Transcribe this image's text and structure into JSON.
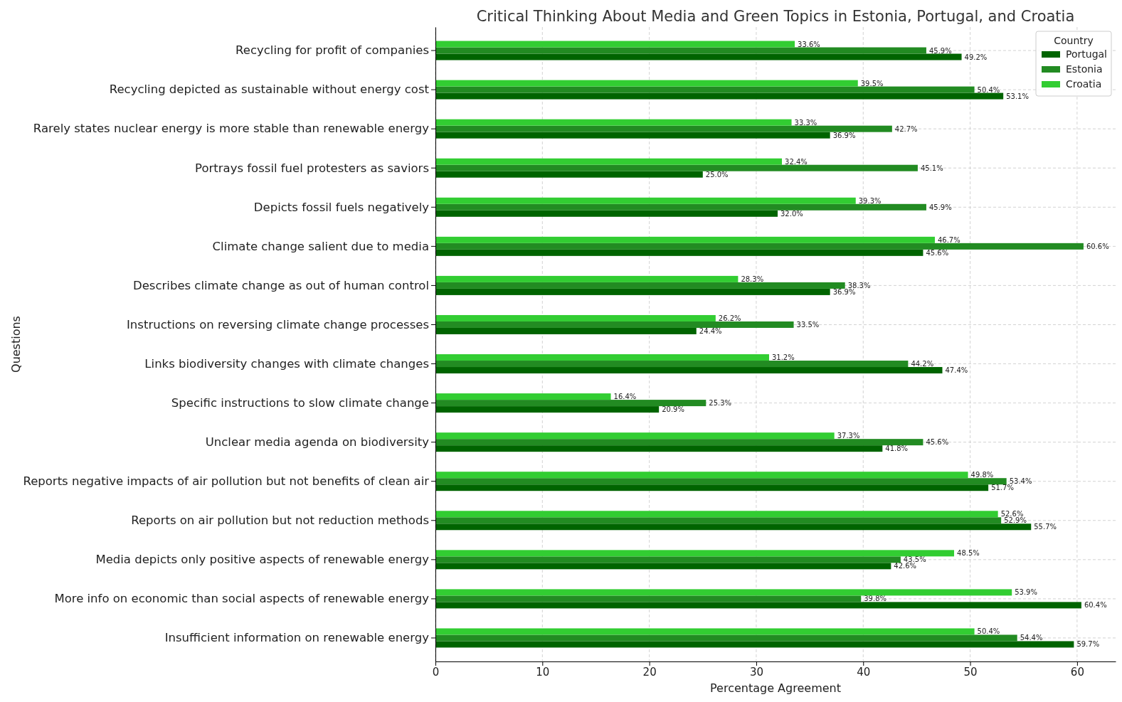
{
  "chart_data": {
    "type": "bar",
    "orientation": "horizontal",
    "title": "Critical Thinking About Media and Green Topics in Estonia, Portugal, and Croatia",
    "xlabel": "Percentage Agreement",
    "ylabel": "Questions",
    "legend_title": "Country",
    "legend": "top right",
    "grid": true,
    "xlim": [
      0,
      63.6
    ],
    "xticks": [
      0,
      10,
      20,
      30,
      40,
      50,
      60
    ],
    "categories": [
      "Recycling for profit of companies",
      "Recycling depicted as sustainable without energy cost",
      "Rarely states nuclear energy is more stable than renewable energy",
      "Portrays fossil fuel protesters as saviors",
      "Depicts fossil fuels negatively",
      "Climate change salient due to media",
      "Describes climate change as out of human control",
      "Instructions on reversing climate change processes",
      "Links biodiversity changes with climate changes",
      "Specific instructions to slow climate change",
      "Unclear media agenda on biodiversity",
      "Reports negative impacts of air pollution but not benefits of clean air",
      "Reports on air pollution but not reduction methods",
      "Media depicts only positive aspects of renewable energy",
      "More info on economic than social aspects of renewable energy",
      "Insufficient information on renewable energy"
    ],
    "series": [
      {
        "name": "Portugal",
        "color": "#006400",
        "values": [
          49.2,
          53.1,
          36.9,
          25.0,
          32.0,
          45.6,
          36.9,
          24.4,
          47.4,
          20.9,
          41.8,
          51.7,
          55.7,
          42.6,
          60.4,
          59.7
        ],
        "value_labels": [
          "49.2%",
          "53.1%",
          "36.9%",
          "25.0%",
          "32.0%",
          "45.6%",
          "36.9%",
          "24.4%",
          "47.4%",
          "20.9%",
          "41.8%",
          "51.7%",
          "55.7%",
          "42.6%",
          "60.4%",
          "59.7%"
        ]
      },
      {
        "name": "Estonia",
        "color": "#228b22",
        "values": [
          45.9,
          50.4,
          42.7,
          45.1,
          45.9,
          60.6,
          38.3,
          33.5,
          44.2,
          25.3,
          45.6,
          53.4,
          52.9,
          43.5,
          39.8,
          54.4
        ],
        "value_labels": [
          "45.9%",
          "50.4%",
          "42.7%",
          "45.1%",
          "45.9%",
          "60.6%",
          "38.3%",
          "33.5%",
          "44.2%",
          "25.3%",
          "45.6%",
          "53.4%",
          "52.9%",
          "43.5%",
          "39.8%",
          "54.4%"
        ]
      },
      {
        "name": "Croatia",
        "color": "#32cd32",
        "values": [
          33.6,
          39.5,
          33.3,
          32.4,
          39.3,
          46.7,
          28.3,
          26.2,
          31.2,
          16.4,
          37.3,
          49.8,
          52.6,
          48.5,
          53.9,
          50.4
        ],
        "value_labels": [
          "33.6%",
          "39.5%",
          "33.3%",
          "32.4%",
          "39.3%",
          "46.7%",
          "28.3%",
          "26.2%",
          "31.2%",
          "16.4%",
          "37.3%",
          "49.8%",
          "52.6%",
          "48.5%",
          "53.9%",
          "50.4%"
        ]
      }
    ]
  }
}
